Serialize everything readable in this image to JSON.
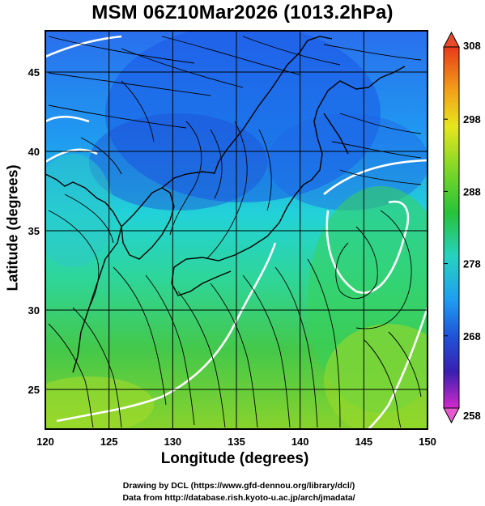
{
  "title": "MSM 06Z10Mar2026 (1013.2hPa)",
  "axes": {
    "xlabel": "Longitude (degrees)",
    "ylabel": "Latitude  (degrees)",
    "xticks": [
      "120",
      "125",
      "130",
      "135",
      "140",
      "145",
      "150"
    ],
    "yticks": [
      "25",
      "30",
      "35",
      "40",
      "45"
    ]
  },
  "colorbar": {
    "ticks": [
      "308",
      "298",
      "288",
      "278",
      "268",
      "258"
    ],
    "range": [
      258,
      308
    ],
    "colors": [
      "#d22acb",
      "#2a1fb8",
      "#1f6ff0",
      "#27d2e6",
      "#2ec22e",
      "#c8e61e",
      "#f2a01a",
      "#e83a1a"
    ]
  },
  "credits": {
    "line1": "Drawing by DCL (https://www.gfd-dennou.org/library/dcl/)",
    "line2": "Data from http://database.rish.kyoto-u.ac.jp/arch/jmadata/"
  },
  "chart_data": {
    "type": "heatmap",
    "title": "MSM 06Z10Mar2026 (1013.2hPa)",
    "xlabel": "Longitude (degrees)",
    "ylabel": "Latitude  (degrees)",
    "xlim": [
      120,
      150
    ],
    "ylim": [
      22.5,
      47.6
    ],
    "colorbar_range": [
      258,
      308
    ],
    "colorbar_ticks": [
      258,
      268,
      278,
      288,
      298,
      308
    ],
    "grid": true
  }
}
